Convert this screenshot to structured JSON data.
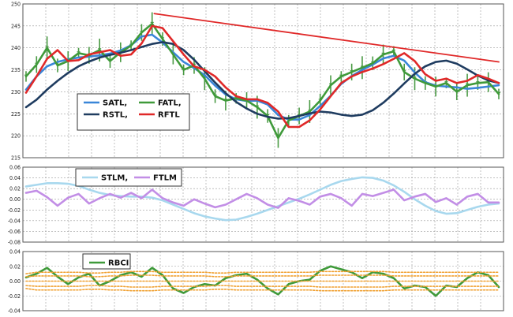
{
  "chart_data": [
    {
      "type": "line",
      "panel": "price",
      "ylim": [
        215,
        250
      ],
      "y_ticks": [
        "250",
        "245",
        "240",
        "235",
        "230",
        "225",
        "220",
        "215"
      ],
      "legend_rows": [
        [
          "SATL,",
          "FATL,"
        ],
        [
          "RSTL,",
          "RFTL"
        ]
      ],
      "series": [
        {
          "name": "SATL",
          "color": "#3a86d8",
          "values": [
            230.5,
            233.5,
            235.8,
            236.8,
            237.4,
            237.8,
            238.0,
            238.3,
            238.7,
            239.4,
            240.6,
            242.6,
            243.0,
            241.2,
            239.0,
            236.8,
            235.4,
            233.8,
            231.4,
            229.4,
            228.3,
            227.9,
            228.0,
            227.1,
            224.7,
            223.7,
            223.7,
            224.7,
            226.8,
            229.1,
            231.8,
            233.6,
            235.0,
            236.2,
            237.6,
            238.2,
            237.1,
            234.4,
            232.2,
            231.4,
            231.2,
            231.0,
            230.7,
            230.9,
            231.2,
            231.5
          ]
        },
        {
          "name": "FATL",
          "color": "#3f9a3a",
          "values": [
            233.5,
            236.2,
            240.0,
            236.0,
            237.0,
            238.8,
            238.3,
            239.5,
            237.0,
            239.0,
            240.5,
            243.5,
            245.5,
            242.0,
            238.5,
            235.0,
            236.0,
            233.0,
            229.0,
            228.0,
            228.5,
            228.0,
            226.5,
            224.5,
            219.5,
            223.5,
            224.5,
            225.5,
            228.0,
            231.5,
            233.5,
            234.5,
            235.5,
            236.5,
            238.5,
            239.2,
            234.5,
            233.0,
            232.0,
            231.2,
            232.0,
            230.0,
            231.5,
            232.0,
            232.2,
            229.5
          ]
        },
        {
          "name": "RSTL",
          "color": "#1f3c60",
          "values": [
            226.5,
            228.2,
            230.5,
            232.5,
            234.3,
            235.8,
            236.9,
            237.8,
            238.4,
            238.9,
            239.5,
            240.2,
            240.9,
            241.3,
            240.9,
            239.5,
            237.3,
            234.7,
            232.1,
            229.7,
            227.7,
            226.2,
            225.0,
            224.3,
            223.9,
            224.0,
            224.5,
            225.1,
            225.5,
            225.3,
            224.8,
            224.5,
            224.8,
            225.8,
            227.5,
            229.6,
            231.9,
            234.1,
            235.8,
            236.8,
            237.1,
            236.4,
            235.1,
            233.7,
            232.6,
            232.0
          ]
        },
        {
          "name": "RFTL",
          "color": "#e02828",
          "values": [
            229.8,
            233.5,
            237.5,
            239.5,
            237.0,
            237.2,
            238.5,
            239.0,
            239.5,
            238.2,
            238.5,
            241.0,
            245.0,
            244.5,
            241.5,
            238.5,
            235.8,
            235.0,
            233.5,
            231.0,
            229.0,
            228.3,
            228.3,
            227.5,
            225.5,
            222.0,
            222.0,
            223.5,
            226.0,
            229.0,
            232.0,
            233.5,
            234.5,
            235.3,
            236.3,
            237.5,
            238.8,
            237.0,
            234.0,
            232.5,
            233.0,
            232.0,
            232.5,
            233.8,
            233.0,
            232.0
          ]
        },
        {
          "name": "trend",
          "color": "#e02828",
          "values": [
            [
              12.2,
              247.8
            ],
            [
              45,
              236.8
            ]
          ]
        }
      ]
    },
    {
      "type": "line",
      "panel": "momentum",
      "ylim": [
        -0.08,
        0.06
      ],
      "y_ticks": [
        "0.06",
        "0.04",
        "0.02",
        "0.00",
        "-0.02",
        "-0.04",
        "-0.06",
        "-0.08"
      ],
      "legend_rows": [
        [
          "STLM,",
          "FTLM"
        ]
      ],
      "series": [
        {
          "name": "STLM",
          "color": "#a8d8ee",
          "values": [
            0.024,
            0.027,
            0.03,
            0.03,
            0.029,
            0.025,
            0.018,
            0.012,
            0.008,
            0.006,
            0.005,
            0.005,
            0.003,
            -0.002,
            -0.01,
            -0.018,
            -0.026,
            -0.032,
            -0.036,
            -0.039,
            -0.038,
            -0.033,
            -0.027,
            -0.02,
            -0.013,
            -0.006,
            0.001,
            0.009,
            0.018,
            0.027,
            0.034,
            0.038,
            0.041,
            0.04,
            0.035,
            0.026,
            0.014,
            0.0,
            -0.012,
            -0.022,
            -0.027,
            -0.026,
            -0.02,
            -0.014,
            -0.01,
            -0.008
          ]
        },
        {
          "name": "FTLM",
          "color": "#c28ee6",
          "values": [
            0.012,
            0.016,
            0.004,
            -0.012,
            0.003,
            0.01,
            -0.008,
            0.002,
            0.01,
            0.003,
            0.012,
            0.002,
            0.018,
            0.002,
            -0.006,
            -0.012,
            0.0,
            -0.008,
            -0.015,
            -0.01,
            0.0,
            0.01,
            0.002,
            -0.01,
            -0.016,
            0.002,
            -0.003,
            -0.01,
            0.005,
            0.01,
            0.002,
            -0.012,
            0.01,
            0.006,
            0.012,
            0.018,
            -0.002,
            0.005,
            0.01,
            -0.005,
            0.002,
            -0.01,
            0.005,
            0.01,
            -0.006,
            -0.006
          ]
        }
      ]
    },
    {
      "type": "line",
      "panel": "oscillator",
      "ylim": [
        -0.04,
        0.04
      ],
      "y_ticks": [
        "0.04",
        "0.02",
        "0.00",
        "-0.02",
        "-0.04"
      ],
      "legend_rows": [
        [
          "RBCI"
        ]
      ],
      "series": [
        {
          "name": "RBCI",
          "color": "#3f9a3a",
          "values": [
            0.005,
            0.01,
            0.018,
            0.006,
            -0.004,
            0.005,
            0.01,
            -0.006,
            0.0,
            0.008,
            0.012,
            0.006,
            0.018,
            0.008,
            -0.01,
            -0.016,
            -0.008,
            -0.004,
            -0.006,
            0.004,
            0.008,
            0.01,
            0.002,
            -0.01,
            -0.018,
            -0.004,
            0.0,
            0.002,
            0.014,
            0.02,
            0.016,
            0.012,
            0.004,
            0.012,
            0.01,
            0.004,
            -0.01,
            -0.006,
            -0.008,
            -0.02,
            -0.006,
            -0.008,
            0.004,
            0.012,
            0.008,
            -0.008
          ]
        },
        {
          "name": "upper band",
          "color": "#f0a030",
          "values": [
            0.01,
            0.012,
            0.012,
            0.012,
            0.012,
            0.012,
            0.011,
            0.011,
            0.012,
            0.012,
            0.013,
            0.013,
            0.013,
            0.012,
            0.012,
            0.012,
            0.012,
            0.012,
            0.011,
            0.011,
            0.012,
            0.012,
            0.012,
            0.012,
            0.012,
            0.012,
            0.012,
            0.012,
            0.013,
            0.013,
            0.013,
            0.013,
            0.013,
            0.013,
            0.013,
            0.012,
            0.012,
            0.012,
            0.012,
            0.012,
            0.012,
            0.012,
            0.012,
            0.012,
            0.012,
            0.012
          ]
        },
        {
          "name": "upper mid band",
          "color": "#f0a030",
          "values": [
            0.006,
            0.007,
            0.007,
            0.007,
            0.007,
            0.007,
            0.006,
            0.006,
            0.007,
            0.007,
            0.008,
            0.008,
            0.008,
            0.007,
            0.007,
            0.007,
            0.007,
            0.007,
            0.006,
            0.006,
            0.007,
            0.007,
            0.007,
            0.007,
            0.007,
            0.007,
            0.007,
            0.007,
            0.008,
            0.008,
            0.008,
            0.008,
            0.008,
            0.008,
            0.008,
            0.007,
            0.007,
            0.007,
            0.007,
            0.007,
            0.007,
            0.007,
            0.007,
            0.007,
            0.007,
            0.007
          ]
        },
        {
          "name": "center band",
          "color": "#f0a030",
          "values": [
            0.0,
            0.0,
            0.0,
            0.0,
            0.0,
            0.0,
            0.0,
            0.0,
            0.0,
            0.0,
            0.0,
            0.0,
            0.0,
            0.0,
            0.0,
            0.0,
            0.0,
            0.0,
            0.0,
            0.0,
            0.0,
            0.0,
            0.0,
            0.0,
            0.0,
            0.0,
            0.0,
            0.0,
            0.0,
            0.0,
            0.0,
            0.0,
            0.0,
            0.0,
            0.0,
            0.0,
            0.0,
            0.0,
            0.0,
            0.0,
            0.0,
            0.0,
            0.0,
            0.0,
            0.0,
            0.0
          ]
        },
        {
          "name": "lower mid band",
          "color": "#f0a030",
          "values": [
            -0.006,
            -0.007,
            -0.007,
            -0.007,
            -0.007,
            -0.007,
            -0.006,
            -0.006,
            -0.007,
            -0.007,
            -0.008,
            -0.008,
            -0.008,
            -0.007,
            -0.007,
            -0.007,
            -0.007,
            -0.007,
            -0.006,
            -0.006,
            -0.007,
            -0.007,
            -0.007,
            -0.007,
            -0.007,
            -0.007,
            -0.007,
            -0.007,
            -0.008,
            -0.008,
            -0.008,
            -0.008,
            -0.008,
            -0.008,
            -0.008,
            -0.007,
            -0.007,
            -0.007,
            -0.007,
            -0.007,
            -0.007,
            -0.007,
            -0.007,
            -0.007,
            -0.007,
            -0.007
          ]
        },
        {
          "name": "lower band",
          "color": "#f0a030",
          "values": [
            -0.01,
            -0.012,
            -0.012,
            -0.012,
            -0.012,
            -0.012,
            -0.011,
            -0.011,
            -0.012,
            -0.012,
            -0.013,
            -0.013,
            -0.013,
            -0.012,
            -0.012,
            -0.012,
            -0.012,
            -0.012,
            -0.011,
            -0.011,
            -0.012,
            -0.012,
            -0.012,
            -0.012,
            -0.012,
            -0.012,
            -0.012,
            -0.012,
            -0.013,
            -0.013,
            -0.013,
            -0.013,
            -0.013,
            -0.013,
            -0.013,
            -0.012,
            -0.012,
            -0.012,
            -0.012,
            -0.012,
            -0.012,
            -0.012,
            -0.012,
            -0.012,
            -0.012,
            -0.012
          ]
        }
      ]
    }
  ]
}
